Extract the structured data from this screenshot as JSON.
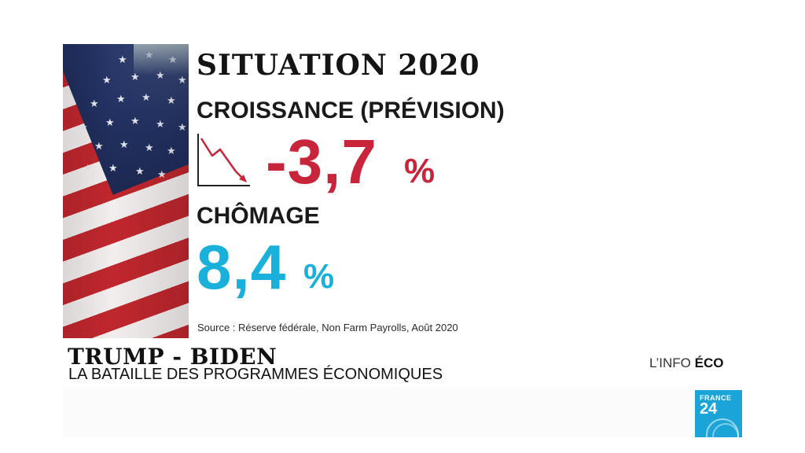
{
  "infographic": {
    "title": "SITUATION 2020",
    "growth_label": "CROISSANCE (PRÉVISION)",
    "growth_value": "-3,7",
    "growth_unit": "%",
    "unemployment_label": "CHÔMAGE",
    "unemployment_value": "8,4",
    "unemployment_unit": "%",
    "source": "Source : Réserve fédérale, Non Farm Payrolls, Août 2020",
    "trend_icon": "declining-chart-icon",
    "image": "us-flag"
  },
  "lower_third": {
    "title": "TRUMP - BIDEN",
    "subtitle": "LA BATAILLE DES PROGRAMMES ÉCONOMIQUES"
  },
  "show": {
    "prefix": "L’INFO",
    "name": "ÉCO"
  },
  "channel_logo": {
    "line1": "FRANCE",
    "line2": "24"
  },
  "colors": {
    "negative_red": "#c8243a",
    "highlight_blue": "#1ab0dc",
    "logo_blue": "#1aa4d8"
  }
}
